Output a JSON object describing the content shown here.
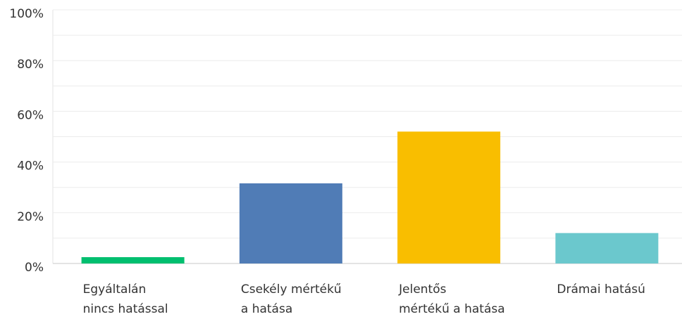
{
  "chart_data": {
    "type": "bar",
    "categories": [
      "Egyáltalán\nnincs hatással",
      "Csekély mértékű\na hatása",
      "Jelentős\nmértékű a hatása",
      "Drámai hatású"
    ],
    "values": [
      2.5,
      31.6,
      52,
      12
    ],
    "colors": [
      "#00bf6f",
      "#507cb6",
      "#f9be00",
      "#6bc8cd"
    ],
    "ylim": [
      0,
      100
    ],
    "yticks": [
      {
        "value": 0,
        "label": "0%"
      },
      {
        "value": 20,
        "label": "20%"
      },
      {
        "value": 40,
        "label": "40%"
      },
      {
        "value": 60,
        "label": "60%"
      },
      {
        "value": 80,
        "label": "80%"
      },
      {
        "value": 100,
        "label": "100%"
      }
    ],
    "minor_yticks": [
      10,
      30,
      50,
      70,
      90
    ],
    "grid": true
  }
}
